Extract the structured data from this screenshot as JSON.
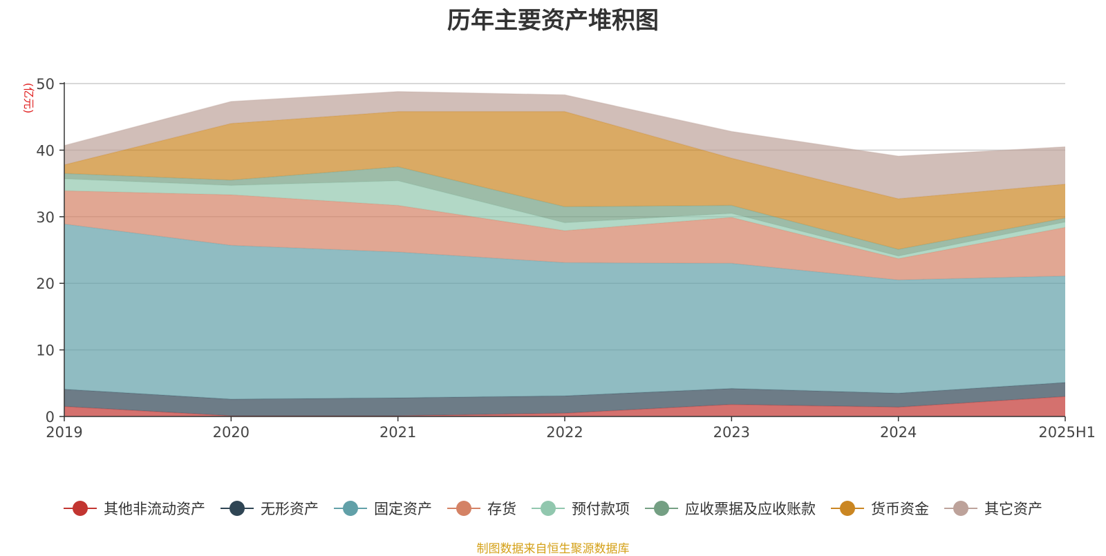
{
  "chart_data": {
    "type": "area",
    "stacked": true,
    "title": "历年主要资产堆积图",
    "unit_label": "(亿元)",
    "categories": [
      "2019",
      "2020",
      "2021",
      "2022",
      "2023",
      "2024",
      "2025H1"
    ],
    "ylim": [
      0,
      50
    ],
    "yticks": [
      "0",
      "10",
      "20",
      "30",
      "40",
      "50"
    ],
    "grid": true,
    "legend_position": "bottom",
    "series": [
      {
        "name": "其他非流动资产",
        "color": "#c23531",
        "values": [
          1.5,
          0.1,
          0.1,
          0.5,
          1.8,
          1.4,
          3.0
        ]
      },
      {
        "name": "无形资产",
        "color": "#2f4554",
        "values": [
          2.6,
          2.5,
          2.7,
          2.6,
          2.4,
          2.1,
          2.1
        ]
      },
      {
        "name": "固定资产",
        "color": "#61a0a8",
        "values": [
          24.8,
          23.1,
          21.9,
          20.0,
          18.8,
          17.0,
          16.0
        ]
      },
      {
        "name": "存货",
        "color": "#d48265",
        "values": [
          5.0,
          7.6,
          7.0,
          4.8,
          6.9,
          3.2,
          7.3
        ]
      },
      {
        "name": "预付款项",
        "color": "#91c7ae",
        "values": [
          1.8,
          1.4,
          3.7,
          1.2,
          0.6,
          0.4,
          0.8
        ]
      },
      {
        "name": "应收票据及应收账款",
        "color": "#749f83",
        "values": [
          0.8,
          0.8,
          2.1,
          2.4,
          1.2,
          1.0,
          0.6
        ]
      },
      {
        "name": "货币资金",
        "color": "#ca8622",
        "values": [
          1.3,
          8.5,
          8.3,
          14.3,
          7.1,
          7.6,
          5.1
        ]
      },
      {
        "name": "其它资产",
        "color": "#bda29a",
        "values": [
          2.9,
          3.3,
          3.0,
          2.5,
          4.0,
          6.4,
          5.6
        ]
      }
    ]
  },
  "source_note": "制图数据来自恒生聚源数据库"
}
